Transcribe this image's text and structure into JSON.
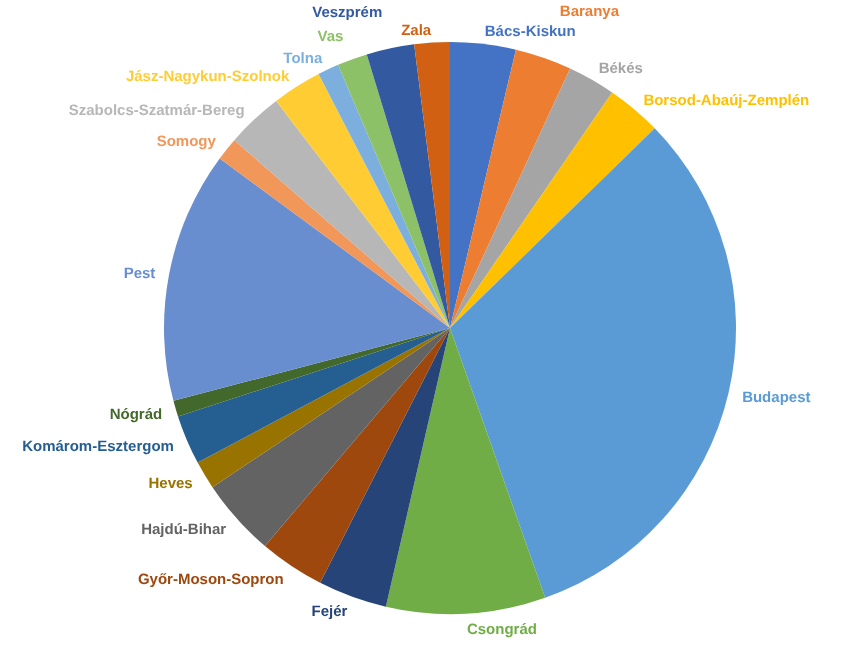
{
  "chart_data": {
    "type": "pie",
    "categories": [
      "Bács-Kiskun",
      "Baranya",
      "Békés",
      "Borsod-Abaúj-Zemplén",
      "Budapest",
      "Csongrád",
      "Fejér",
      "Győr-Moson-Sopron",
      "Hajdú-Bihar",
      "Heves",
      "Komárom-Esztergom",
      "Nógrád",
      "Pest",
      "Somogy",
      "Szabolcs-Szatmár-Bereg",
      "Jász-Nagykun-Szolnok",
      "Tolna",
      "Vas",
      "Veszprém",
      "Zala"
    ],
    "values": [
      3.7,
      3.2,
      2.7,
      3.1,
      31.9,
      9.0,
      3.9,
      3.7,
      4.4,
      1.6,
      2.8,
      0.9,
      14.2,
      1.3,
      3.2,
      2.8,
      1.2,
      1.7,
      2.7,
      2.0
    ],
    "colors": [
      "#4472c4",
      "#ed7d31",
      "#a5a5a5",
      "#ffc000",
      "#5b9bd5",
      "#70ad47",
      "#264478",
      "#9e480e",
      "#636363",
      "#997300",
      "#255e91",
      "#43682b",
      "#698ed0",
      "#f1975a",
      "#b7b7b7",
      "#ffcd33",
      "#7cafdd",
      "#8cc168",
      "#335aa1",
      "#d26012"
    ]
  }
}
